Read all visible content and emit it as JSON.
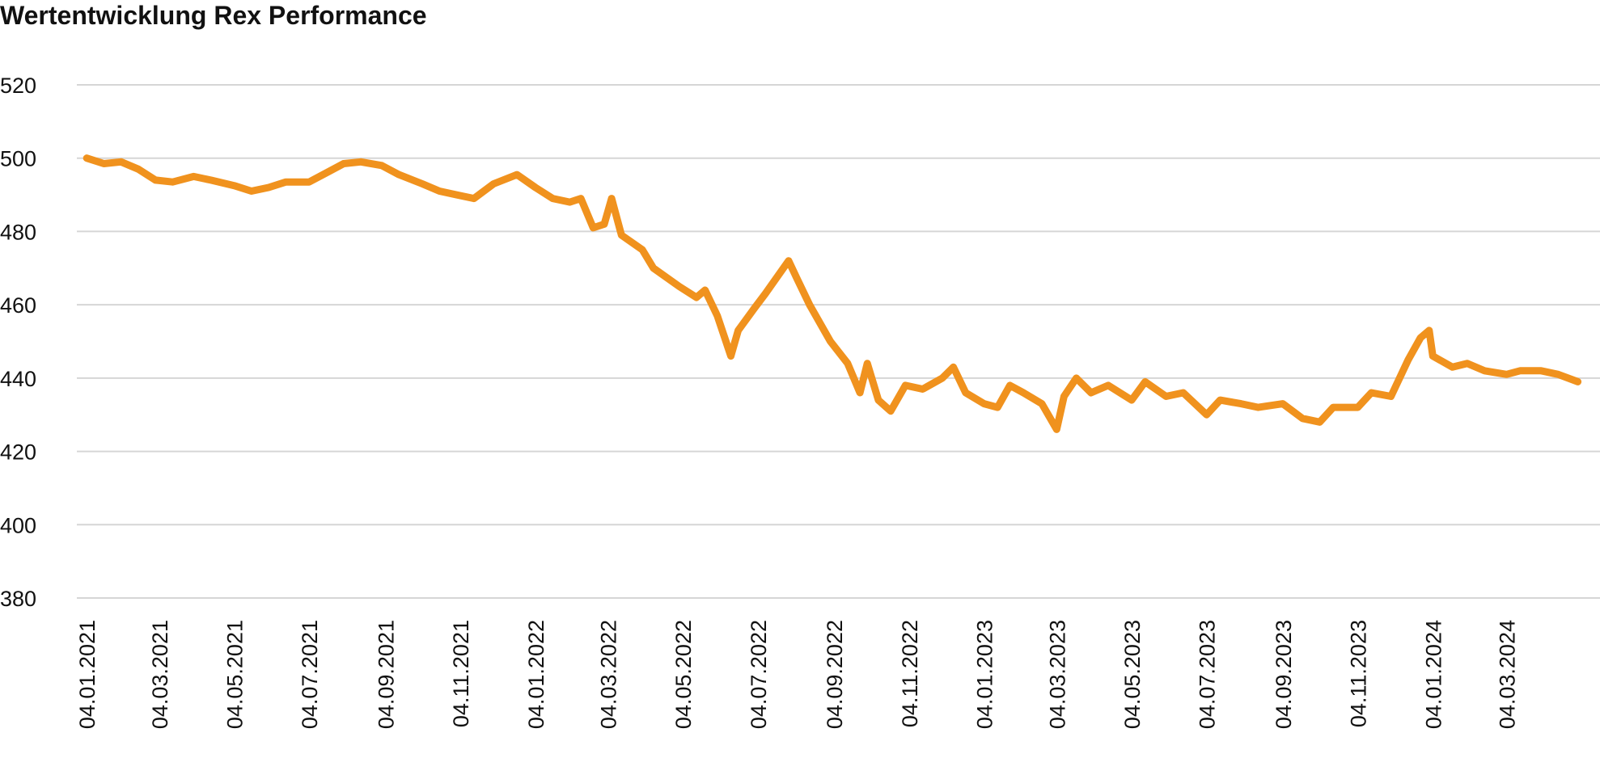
{
  "chart_data": {
    "type": "line",
    "title": "Wertentwicklung Rex Performance",
    "x": [
      "04.01.2021",
      "18.01.2021",
      "01.02.2021",
      "15.02.2021",
      "01.03.2021",
      "15.03.2021",
      "01.04.2021",
      "15.04.2021",
      "04.05.2021",
      "18.05.2021",
      "01.06.2021",
      "15.06.2021",
      "04.07.2021",
      "18.07.2021",
      "01.08.2021",
      "15.08.2021",
      "01.09.2021",
      "15.09.2021",
      "04.10.2021",
      "18.10.2021",
      "01.11.2021",
      "15.11.2021",
      "01.12.2021",
      "20.12.2021",
      "04.01.2022",
      "18.01.2022",
      "01.02.2022",
      "10.02.2022",
      "20.02.2022",
      "01.03.2022",
      "07.03.2022",
      "15.03.2022",
      "01.04.2022",
      "10.04.2022",
      "01.05.2022",
      "15.05.2022",
      "22.05.2022",
      "01.06.2022",
      "12.06.2022",
      "18.06.2022",
      "01.07.2022",
      "10.07.2022",
      "29.07.2022",
      "05.08.2022",
      "15.08.2022",
      "01.09.2022",
      "15.09.2022",
      "25.09.2022",
      "01.10.2022",
      "10.10.2022",
      "20.10.2022",
      "01.11.2022",
      "15.11.2022",
      "01.12.2022",
      "10.12.2022",
      "20.12.2022",
      "04.01.2023",
      "15.01.2023",
      "25.01.2023",
      "05.02.2023",
      "20.02.2023",
      "04.03.2023",
      "10.03.2023",
      "20.03.2023",
      "01.04.2023",
      "15.04.2023",
      "04.05.2023",
      "15.05.2023",
      "01.06.2023",
      "15.06.2023",
      "04.07.2023",
      "15.07.2023",
      "01.08.2023",
      "15.08.2023",
      "04.09.2023",
      "20.09.2023",
      "04.10.2023",
      "15.10.2023",
      "04.11.2023",
      "15.11.2023",
      "01.12.2023",
      "15.12.2023",
      "25.12.2023",
      "01.01.2024",
      "04.01.2024",
      "20.01.2024",
      "01.02.2024",
      "15.02.2024",
      "04.03.2024",
      "15.03.2024",
      "01.04.2024",
      "15.04.2024",
      "01.05.2024"
    ],
    "series": [
      {
        "name": "Rex Performance",
        "color": "#f0921e",
        "values": [
          500,
          498.5,
          499,
          497,
          494,
          493.5,
          495,
          494,
          492.5,
          491,
          492,
          493.5,
          493.5,
          496,
          498.5,
          499,
          498,
          495.5,
          493,
          491,
          490,
          489,
          493,
          495.5,
          492,
          489,
          488,
          489,
          481,
          482,
          489,
          479,
          475,
          470,
          465,
          462,
          464,
          457,
          446,
          453,
          459,
          463,
          472,
          467,
          460,
          450,
          444,
          436,
          444,
          434,
          431,
          438,
          437,
          440,
          443,
          436,
          433,
          432,
          438,
          436,
          433,
          426,
          435,
          440,
          436,
          438,
          434,
          439,
          435,
          436,
          430,
          434,
          433,
          432,
          433,
          429,
          428,
          432,
          432,
          436,
          435,
          445,
          451,
          453,
          446,
          443,
          444,
          442,
          441,
          442,
          442,
          441,
          439
        ]
      }
    ],
    "xlim": [
      "27.12.2020",
      "19.05.2024"
    ],
    "xticks": [
      "04.01.2021",
      "04.03.2021",
      "04.05.2021",
      "04.07.2021",
      "04.09.2021",
      "04.11.2021",
      "04.01.2022",
      "04.03.2022",
      "04.05.2022",
      "04.07.2022",
      "04.09.2022",
      "04.11.2022",
      "04.01.2023",
      "04.03.2023",
      "04.05.2023",
      "04.07.2023",
      "04.09.2023",
      "04.11.2023",
      "04.01.2024",
      "04.03.2024"
    ],
    "ylim": [
      380,
      520
    ],
    "yticks": [
      380,
      400,
      420,
      440,
      460,
      480,
      500,
      520
    ],
    "grid": true
  }
}
